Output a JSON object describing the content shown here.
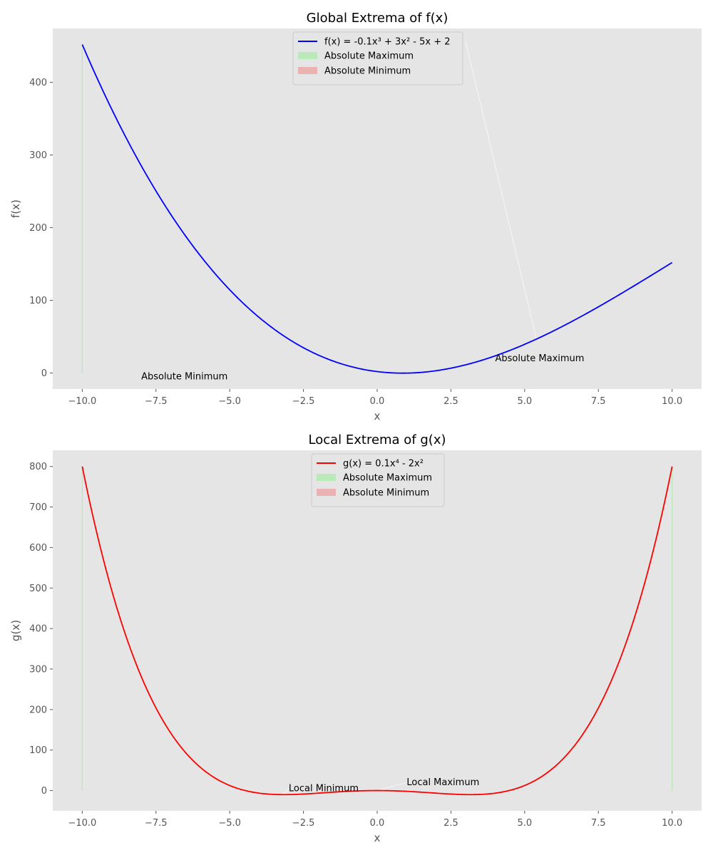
{
  "chart_data": [
    {
      "type": "line",
      "title": "Global Extrema of f(x)",
      "xlabel": "x",
      "ylabel": "f(x)",
      "xlim": [
        -11,
        11
      ],
      "ylim": [
        -22,
        474
      ],
      "xticks": [
        -10,
        -7.5,
        -5,
        -2.5,
        0,
        2.5,
        5,
        7.5,
        10
      ],
      "xtick_labels": [
        "−10.0",
        "−7.5",
        "−5.0",
        "−2.5",
        "0.0",
        "2.5",
        "5.0",
        "7.5",
        "10.0"
      ],
      "yticks": [
        0,
        100,
        200,
        300,
        400
      ],
      "ytick_labels": [
        "0",
        "100",
        "200",
        "300",
        "400"
      ],
      "grid": false,
      "background": "#e5e5e5",
      "legend_position": "top-center",
      "series": [
        {
          "name": "f(x) = -0.1x³ + 3x² - 5x + 2",
          "color": "#0000ff",
          "function": "cubic",
          "coefficients": [
            -0.1,
            3,
            -5,
            2
          ],
          "x_range": [
            -10,
            10
          ],
          "sample_points": [
            [
              -10,
              452
            ],
            [
              -7.5,
              249.9
            ],
            [
              -5,
              114.5
            ],
            [
              -2.5,
              34.3
            ],
            [
              0,
              2
            ],
            [
              0.85,
              -0.1
            ],
            [
              2.5,
              7.2
            ],
            [
              5,
              39.5
            ],
            [
              7.5,
              91.2
            ],
            [
              10,
              152
            ]
          ]
        }
      ],
      "fills": [
        {
          "label": "Absolute Maximum",
          "color": "#90ee90",
          "alpha": 0.5,
          "x": -10,
          "y_range": [
            0,
            452
          ]
        },
        {
          "label": "Absolute Minimum",
          "color": "#f08080",
          "alpha": 0.5
        }
      ],
      "annotations": [
        {
          "text": "Absolute Maximum",
          "x": 4,
          "y": 20,
          "arrow_to": [
            5.4,
            47
          ],
          "arrow_from": [
            3,
            456
          ]
        },
        {
          "text": "Absolute Minimum",
          "x": -8,
          "y": -5
        }
      ]
    },
    {
      "type": "line",
      "title": "Local Extrema of g(x)",
      "xlabel": "x",
      "ylabel": "g(x)",
      "xlim": [
        -11,
        11
      ],
      "ylim": [
        -50,
        840
      ],
      "xticks": [
        -10,
        -7.5,
        -5,
        -2.5,
        0,
        2.5,
        5,
        7.5,
        10
      ],
      "xtick_labels": [
        "−10.0",
        "−7.5",
        "−5.0",
        "−2.5",
        "0.0",
        "2.5",
        "5.0",
        "7.5",
        "10.0"
      ],
      "yticks": [
        0,
        100,
        200,
        300,
        400,
        500,
        600,
        700,
        800
      ],
      "ytick_labels": [
        "0",
        "100",
        "200",
        "300",
        "400",
        "500",
        "600",
        "700",
        "800"
      ],
      "grid": false,
      "background": "#e5e5e5",
      "legend_position": "top-center",
      "series": [
        {
          "name": "g(x) = 0.1x⁴ - 2x²",
          "color": "#ff0000",
          "function": "quartic",
          "coefficients": [
            0.1,
            0,
            -2,
            0,
            0
          ],
          "x_range": [
            -10,
            10
          ],
          "sample_points": [
            [
              -10,
              800
            ],
            [
              -7.5,
              203.9
            ],
            [
              -5,
              12.5
            ],
            [
              -3.16,
              -10
            ],
            [
              0,
              0
            ],
            [
              3.16,
              -10
            ],
            [
              5,
              12.5
            ],
            [
              7.5,
              203.9
            ],
            [
              10,
              800
            ]
          ]
        }
      ],
      "fills": [
        {
          "label": "Absolute Maximum",
          "color": "#90ee90",
          "alpha": 0.5,
          "x": [
            -10,
            10
          ],
          "y_range": [
            0,
            800
          ]
        },
        {
          "label": "Absolute Minimum",
          "color": "#f08080",
          "alpha": 0.5
        }
      ],
      "annotations": [
        {
          "text": "Local Minimum",
          "x": -3,
          "y": 5,
          "arrow_to": [
            -3.2,
            -10
          ]
        },
        {
          "text": "Local Maximum",
          "x": 1,
          "y": 20,
          "arrow_to": [
            0,
            0
          ]
        }
      ]
    }
  ]
}
